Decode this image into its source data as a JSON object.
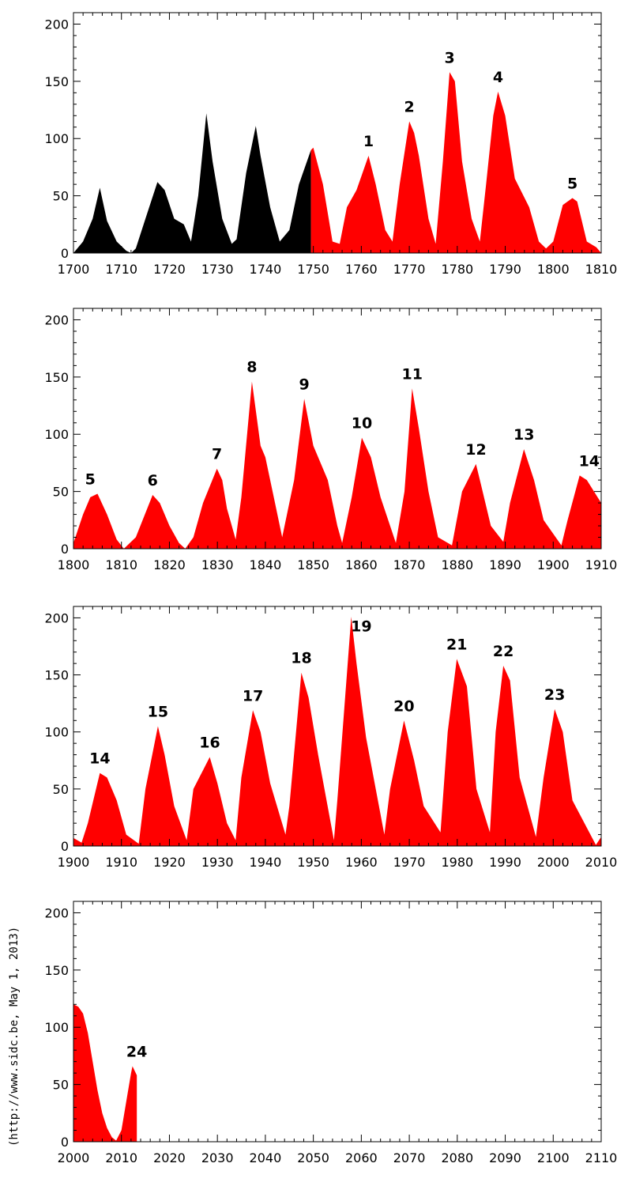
{
  "credit": "(http://www.sidc.be, May  1, 2013)",
  "colors": {
    "historical": "#000000",
    "numbered": "#ff0000",
    "axis": "#000000"
  },
  "chart_data": [
    {
      "type": "area",
      "title": "",
      "xlabel": "",
      "ylabel": "",
      "xlim": [
        1700,
        1810
      ],
      "ylim": [
        0,
        210
      ],
      "x_ticks": [
        1700,
        1710,
        1720,
        1730,
        1740,
        1750,
        1760,
        1770,
        1780,
        1790,
        1800,
        1810
      ],
      "y_ticks": [
        0,
        50,
        100,
        150,
        200
      ],
      "series": [
        {
          "color": "#000000",
          "x": [
            1700,
            1702,
            1704,
            1705.5,
            1707,
            1709,
            1711,
            1712,
            1713,
            1715,
            1717.5,
            1719,
            1721,
            1723,
            1724.5,
            1726,
            1727.7,
            1729,
            1731,
            1733,
            1734,
            1736,
            1738,
            1739,
            1741,
            1743,
            1745,
            1747,
            1749.5
          ],
          "y": [
            0,
            10,
            30,
            57,
            28,
            10,
            2,
            0,
            4,
            30,
            62,
            55,
            30,
            25,
            10,
            50,
            122,
            80,
            30,
            8,
            12,
            70,
            111,
            85,
            40,
            10,
            20,
            60,
            90
          ]
        },
        {
          "color": "#ff0000",
          "x": [
            1749.5,
            1750,
            1752,
            1754,
            1755.5,
            1757,
            1759,
            1761.5,
            1763,
            1765,
            1766.5,
            1768,
            1770,
            1771,
            1772,
            1774,
            1775.5,
            1777,
            1778.4,
            1779.5,
            1781,
            1783,
            1784.7,
            1786,
            1787.5,
            1788.5,
            1790,
            1792,
            1795,
            1797,
            1798.5,
            1800,
            1802,
            1804,
            1805,
            1807,
            1809,
            1810
          ],
          "y": [
            90,
            92,
            60,
            10,
            8,
            40,
            55,
            85,
            60,
            20,
            10,
            60,
            115,
            105,
            85,
            30,
            8,
            80,
            158,
            150,
            80,
            30,
            10,
            60,
            120,
            141,
            120,
            65,
            40,
            10,
            4,
            10,
            42,
            48,
            45,
            10,
            5,
            0
          ]
        }
      ],
      "annotations": [
        {
          "label": "1",
          "x": 1761.5,
          "y": 85
        },
        {
          "label": "2",
          "x": 1770,
          "y": 115
        },
        {
          "label": "3",
          "x": 1778.4,
          "y": 158
        },
        {
          "label": "4",
          "x": 1788.5,
          "y": 141
        },
        {
          "label": "5",
          "x": 1804,
          "y": 48
        }
      ]
    },
    {
      "type": "area",
      "title": "",
      "xlabel": "",
      "ylabel": "",
      "xlim": [
        1800,
        1910
      ],
      "ylim": [
        0,
        210
      ],
      "x_ticks": [
        1800,
        1810,
        1820,
        1830,
        1840,
        1850,
        1860,
        1870,
        1880,
        1890,
        1900,
        1910
      ],
      "y_ticks": [
        0,
        50,
        100,
        150,
        200
      ],
      "series": [
        {
          "color": "#ff0000",
          "x": [
            1800,
            1802,
            1803.5,
            1805,
            1807,
            1809,
            1810.5,
            1813,
            1816.5,
            1818,
            1820,
            1822,
            1823.3,
            1825,
            1827,
            1829.9,
            1831,
            1832,
            1833.8,
            1835,
            1837.2,
            1839,
            1840,
            1842,
            1843.5,
            1846,
            1848.1,
            1850,
            1853,
            1855,
            1856,
            1858,
            1860.1,
            1862,
            1864,
            1866,
            1867.2,
            1869,
            1870.6,
            1872,
            1874,
            1876,
            1878.9,
            1881,
            1883.9,
            1885,
            1887,
            1889.6,
            1891,
            1893.9,
            1896,
            1898,
            1901.7,
            1903,
            1905.5,
            1907,
            1910
          ],
          "y": [
            5,
            30,
            45,
            48,
            30,
            8,
            0,
            10,
            47,
            40,
            20,
            5,
            0,
            10,
            40,
            70,
            60,
            35,
            8,
            45,
            146,
            90,
            80,
            40,
            10,
            60,
            131,
            90,
            60,
            20,
            5,
            45,
            97,
            80,
            45,
            20,
            5,
            50,
            140,
            105,
            50,
            10,
            3,
            50,
            74,
            55,
            20,
            6,
            40,
            87,
            60,
            25,
            3,
            25,
            64,
            60,
            40
          ]
        }
      ],
      "annotations": [
        {
          "label": "5",
          "x": 1803.5,
          "y": 48
        },
        {
          "label": "6",
          "x": 1816.5,
          "y": 47
        },
        {
          "label": "7",
          "x": 1829.9,
          "y": 70
        },
        {
          "label": "8",
          "x": 1837.2,
          "y": 146
        },
        {
          "label": "9",
          "x": 1848.1,
          "y": 131
        },
        {
          "label": "10",
          "x": 1860.1,
          "y": 97
        },
        {
          "label": "11",
          "x": 1870.6,
          "y": 140
        },
        {
          "label": "12",
          "x": 1883.9,
          "y": 74
        },
        {
          "label": "13",
          "x": 1893.9,
          "y": 87
        },
        {
          "label": "14",
          "x": 1907.5,
          "y": 64
        }
      ]
    },
    {
      "type": "area",
      "title": "",
      "xlabel": "",
      "ylabel": "",
      "xlim": [
        1900,
        2010
      ],
      "ylim": [
        0,
        210
      ],
      "x_ticks": [
        1900,
        1910,
        1920,
        1930,
        1940,
        1950,
        1960,
        1970,
        1980,
        1990,
        2000,
        2010
      ],
      "y_ticks": [
        0,
        50,
        100,
        150,
        200
      ],
      "series": [
        {
          "color": "#ff0000",
          "x": [
            1900,
            1901.7,
            1903,
            1905.5,
            1907,
            1909,
            1911,
            1913.6,
            1915,
            1917.6,
            1919,
            1921,
            1923.6,
            1925,
            1928.4,
            1930,
            1932,
            1933.8,
            1935,
            1937.4,
            1939,
            1941,
            1944.2,
            1945,
            1947.5,
            1949,
            1951,
            1954.3,
            1955,
            1957.9,
            1959,
            1961,
            1964.8,
            1966,
            1968.9,
            1971,
            1973,
            1976.5,
            1978,
            1979.9,
            1982,
            1984,
            1986.8,
            1988,
            1989.6,
            1991,
            1993,
            1996.4,
            1998,
            2000.3,
            2002,
            2004,
            2008.9,
            2010
          ],
          "y": [
            7,
            3,
            20,
            64,
            60,
            40,
            10,
            2,
            50,
            105,
            80,
            35,
            5,
            50,
            78,
            55,
            20,
            5,
            60,
            119,
            100,
            55,
            10,
            35,
            152,
            130,
            80,
            5,
            40,
            201,
            160,
            95,
            10,
            50,
            110,
            75,
            35,
            12,
            100,
            164,
            140,
            50,
            12,
            100,
            158,
            145,
            60,
            8,
            60,
            120,
            100,
            40,
            1,
            8
          ]
        }
      ],
      "annotations": [
        {
          "label": "14",
          "x": 1905.5,
          "y": 64
        },
        {
          "label": "15",
          "x": 1917.6,
          "y": 105
        },
        {
          "label": "16",
          "x": 1928.4,
          "y": 78
        },
        {
          "label": "17",
          "x": 1937.4,
          "y": 119
        },
        {
          "label": "18",
          "x": 1947.5,
          "y": 152
        },
        {
          "label": "19",
          "x": 1960,
          "y": 180
        },
        {
          "label": "20",
          "x": 1968.9,
          "y": 110
        },
        {
          "label": "21",
          "x": 1979.9,
          "y": 164
        },
        {
          "label": "22",
          "x": 1989.6,
          "y": 158
        },
        {
          "label": "23",
          "x": 2000.3,
          "y": 120
        }
      ]
    },
    {
      "type": "area",
      "title": "",
      "xlabel": "",
      "ylabel": "",
      "xlim": [
        2000,
        2110
      ],
      "ylim": [
        0,
        210
      ],
      "x_ticks": [
        2000,
        2010,
        2020,
        2030,
        2040,
        2050,
        2060,
        2070,
        2080,
        2090,
        2100,
        2110
      ],
      "y_ticks": [
        0,
        50,
        100,
        150,
        200
      ],
      "series": [
        {
          "color": "#ff0000",
          "x": [
            2000,
            2001,
            2002,
            2003,
            2004,
            2005,
            2006,
            2007,
            2008,
            2008.9,
            2010,
            2011,
            2012,
            2012.3,
            2013.2
          ],
          "y": [
            120,
            118,
            112,
            95,
            70,
            45,
            25,
            12,
            4,
            1,
            10,
            35,
            60,
            66,
            58
          ]
        }
      ],
      "annotations": [
        {
          "label": "24",
          "x": 2013.2,
          "y": 66
        }
      ]
    }
  ]
}
